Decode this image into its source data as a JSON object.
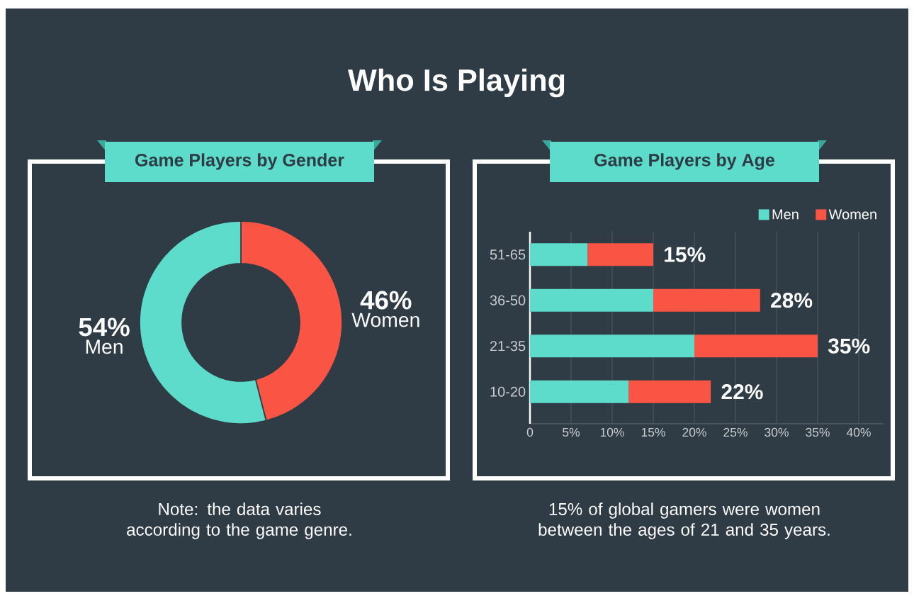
{
  "chart_data": [
    {
      "type": "other",
      "title": "Who Is Playing"
    },
    {
      "type": "donut",
      "title": "Game Players by Gender",
      "categories": [
        "Women",
        "Men"
      ],
      "values": [
        46,
        54
      ],
      "colors": [
        "#fa5544",
        "#5ddbcb"
      ],
      "value_labels": [
        "46%",
        "54%"
      ],
      "annotations": [
        "Note: the data varies according to the game genre."
      ]
    },
    {
      "type": "bar",
      "orientation": "horizontal",
      "stacked": true,
      "title": "Game Players by Age",
      "categories": [
        "51-65",
        "36-50",
        "21-35",
        "10-20"
      ],
      "series": [
        {
          "name": "Men",
          "color": "#5ddbcb",
          "values": [
            7,
            15,
            20,
            12
          ]
        },
        {
          "name": "Women",
          "color": "#fa5544",
          "values": [
            8,
            13,
            15,
            10
          ]
        }
      ],
      "totals": [
        "15%",
        "28%",
        "35%",
        "22%"
      ],
      "xlim": [
        0,
        43
      ],
      "xticks": [
        0,
        {
          "value": 5,
          "label": "5%"
        },
        {
          "value": 10,
          "label": "10%"
        },
        {
          "value": 15,
          "label": "15%"
        },
        {
          "value": 20,
          "label": "20%"
        },
        {
          "value": 25,
          "label": "25%"
        },
        {
          "value": 30,
          "label": "30%"
        },
        {
          "value": 35,
          "label": "35%"
        },
        {
          "value": 40,
          "label": "40%"
        }
      ],
      "grid": "x",
      "legend": "top right",
      "annotations": [
        "15% of global gamers were women between the ages of 21 and 35 years."
      ]
    }
  ]
}
